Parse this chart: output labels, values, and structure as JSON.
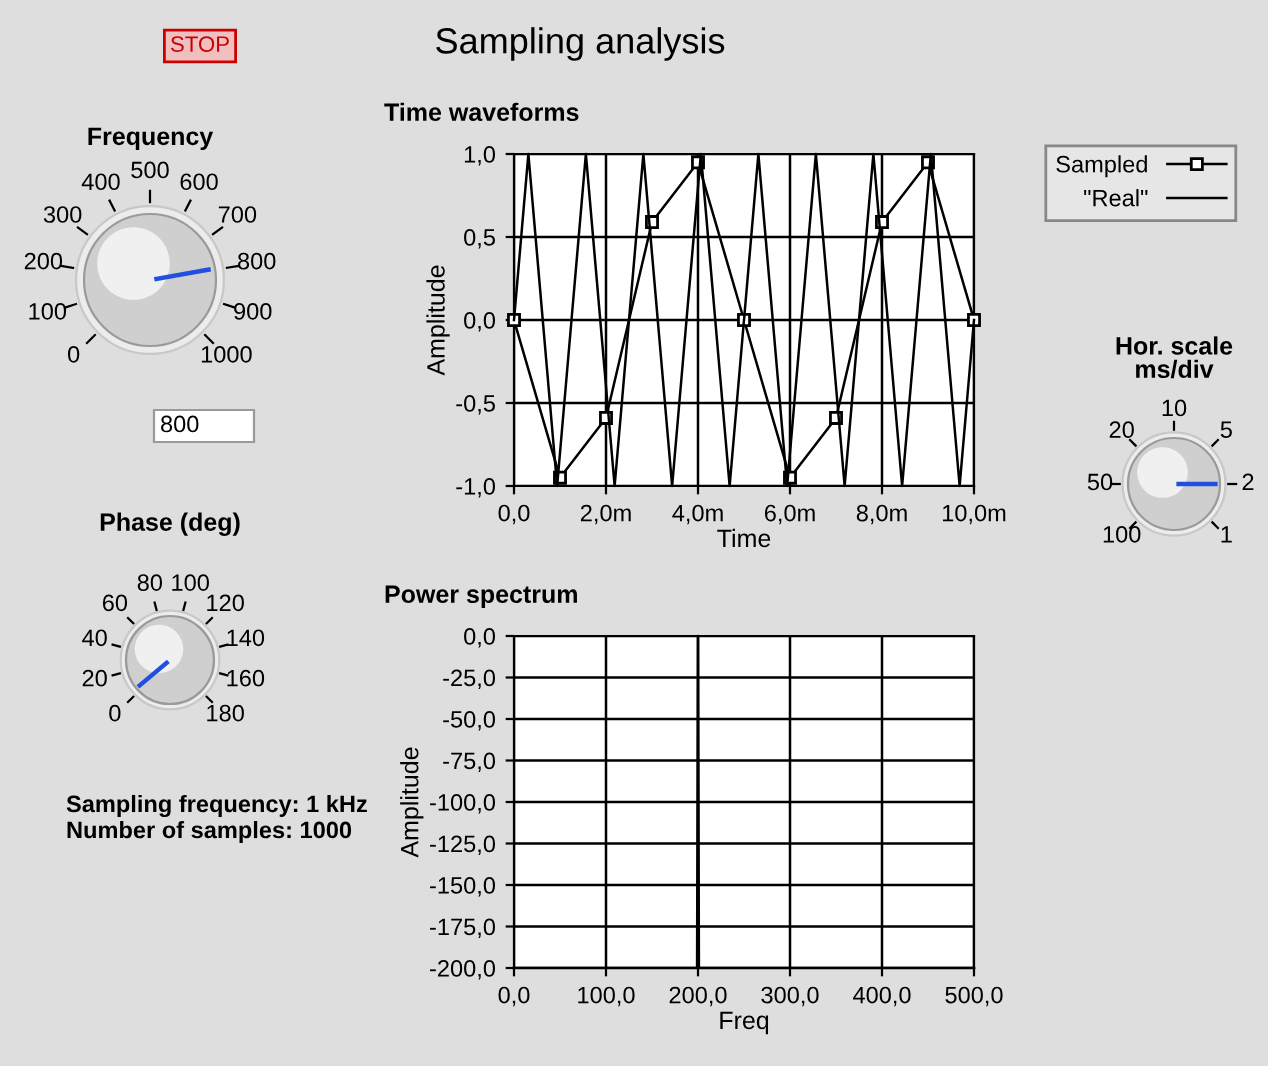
{
  "chart_data": [
    {
      "type": "other",
      "title": "Sampling analysis",
      "annotations": [
        "STOP"
      ]
    },
    {
      "type": "other",
      "title": "Frequency",
      "categories": [
        "0",
        "100",
        "200",
        "300",
        "400",
        "500",
        "600",
        "700",
        "800",
        "900",
        "1000"
      ],
      "annotations": [
        "800"
      ]
    },
    {
      "type": "line",
      "title": "Time waveforms",
      "xlabel": "Time",
      "ylabel": "Amplitude",
      "xlim": [
        0,
        10
      ],
      "xticks": [
        {
          "value": 0,
          "label": "0,0"
        },
        {
          "value": 2,
          "label": "2,0m"
        },
        {
          "value": 4,
          "label": "4,0m"
        },
        {
          "value": 6,
          "label": "6,0m"
        },
        {
          "value": 8,
          "label": "8,0m"
        },
        {
          "value": 10,
          "label": "10,0m"
        }
      ],
      "ylim": [
        -1,
        1
      ],
      "yticks": [
        {
          "value": 1,
          "label": "1,0"
        },
        {
          "value": 0.5,
          "label": "0,5"
        },
        {
          "value": 0,
          "label": "0,0"
        },
        {
          "value": -0.5,
          "label": "-0,5"
        },
        {
          "value": -1,
          "label": "-1,0"
        }
      ],
      "grid": true,
      "legend": "top right",
      "series": [
        {
          "name": "Sampled",
          "color": "#000000",
          "marker": "square",
          "x": [
            0,
            1,
            2,
            3,
            4,
            5,
            6,
            7,
            8,
            9,
            10
          ],
          "values": [
            0,
            -0.95,
            -0.59,
            0.59,
            0.95,
            0,
            -0.95,
            -0.59,
            0.59,
            0.95,
            0
          ]
        },
        {
          "name": "\"Real\"",
          "color": "#000000",
          "marker": "none",
          "x": [
            0,
            0.3125,
            0.625,
            0.9375,
            1.25,
            1.5625,
            1.875,
            2.1875,
            2.5,
            2.8125,
            3.125,
            3.4375,
            3.75,
            4.0625,
            4.375,
            4.6875,
            5,
            5.3125,
            5.625,
            5.9375,
            6.25,
            6.5625,
            6.875,
            7.1875,
            7.5,
            7.8125,
            8.125,
            8.4375,
            8.75,
            9.0625,
            9.375,
            9.6875,
            10
          ],
          "values": [
            0,
            1,
            0,
            -1,
            0,
            1,
            0,
            -1,
            0,
            1,
            0,
            -1,
            0,
            1,
            0,
            -1,
            0,
            1,
            0,
            -1,
            0,
            1,
            0,
            -1,
            0,
            1,
            0,
            -1,
            0,
            1,
            0,
            -1,
            0
          ]
        }
      ]
    },
    {
      "type": "other",
      "title": "Hor. scale\nms/div",
      "categories": [
        "100",
        "50",
        "20",
        "10",
        "5",
        "2",
        "1"
      ]
    },
    {
      "type": "other",
      "title": "Phase (deg)",
      "categories": [
        "0",
        "20",
        "40",
        "60",
        "80",
        "100",
        "120",
        "140",
        "160",
        "180"
      ]
    },
    {
      "type": "other",
      "annotations": [
        "Sampling frequency: 1 kHz",
        "Number of samples: 1000"
      ]
    },
    {
      "type": "line",
      "title": "Power spectrum",
      "xlabel": "Freq",
      "ylabel": "Amplitude",
      "xlim": [
        0,
        500
      ],
      "xticks": [
        {
          "value": 0,
          "label": "0,0"
        },
        {
          "value": 100,
          "label": "100,0"
        },
        {
          "value": 200,
          "label": "200,0"
        },
        {
          "value": 300,
          "label": "300,0"
        },
        {
          "value": 400,
          "label": "400,0"
        },
        {
          "value": 500,
          "label": "500,0"
        }
      ],
      "ylim": [
        -200,
        0
      ],
      "yticks": [
        {
          "value": 0,
          "label": "0,0"
        },
        {
          "value": -25,
          "label": "-25,0"
        },
        {
          "value": -50,
          "label": "-50,0"
        },
        {
          "value": -75,
          "label": "-75,0"
        },
        {
          "value": -100,
          "label": "-100,0"
        },
        {
          "value": -125,
          "label": "-125,0"
        },
        {
          "value": -150,
          "label": "-150,0"
        },
        {
          "value": -175,
          "label": "-175,0"
        },
        {
          "value": -200,
          "label": "-200,0"
        }
      ],
      "grid": true,
      "series": [
        {
          "color": "#000000",
          "x": [
            0,
            199,
            200,
            201,
            500
          ],
          "values": [
            -200,
            -200,
            0,
            -200,
            -200
          ]
        }
      ]
    }
  ]
}
